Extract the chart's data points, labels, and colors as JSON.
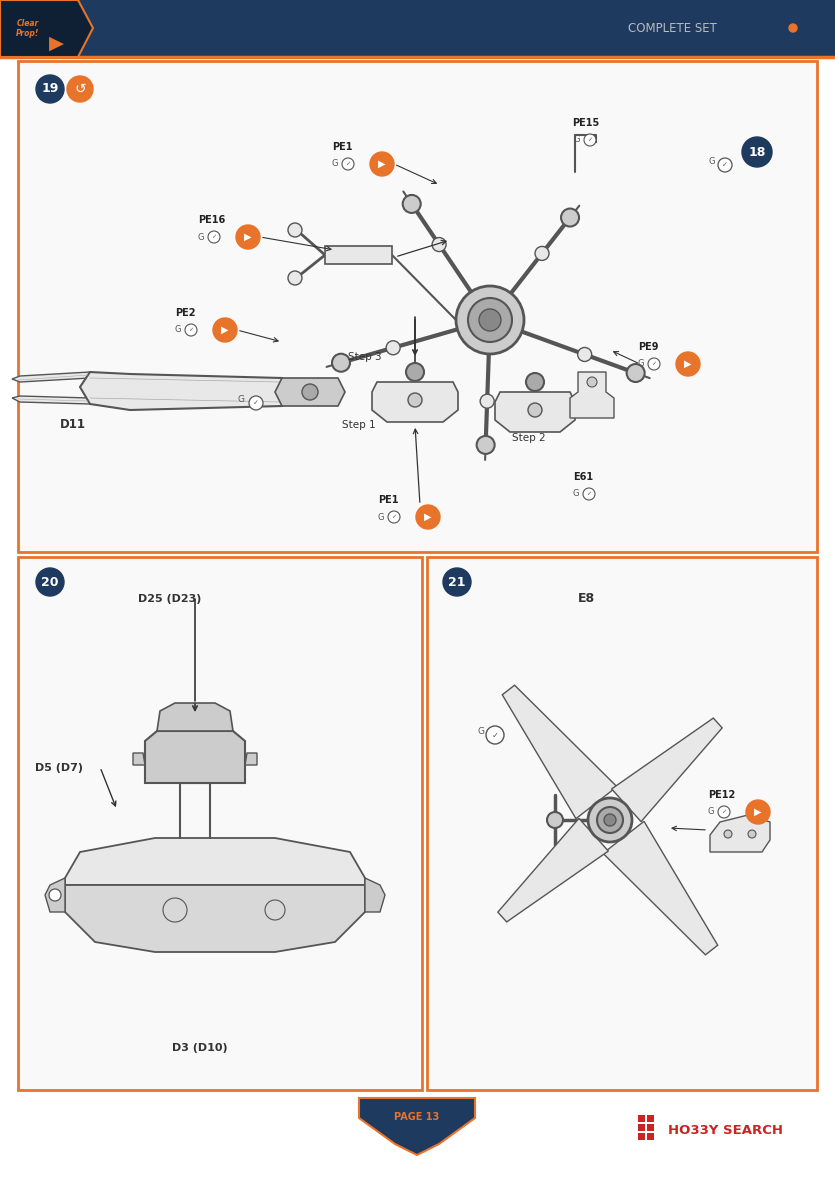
{
  "bg_color": "#ffffff",
  "header_bg": "#1e3a5f",
  "orange": "#e8732a",
  "dark_navy": "#1e3a5f",
  "complete_set": "COMPLETE SET",
  "page_num": "PAGE 13",
  "line_color": "#555555",
  "text_dark": "#222222",
  "fill_light": "#e8e8e8",
  "fill_mid": "#cccccc",
  "fill_dark": "#aaaaaa",
  "step19": "19",
  "step18": "18",
  "step20": "20",
  "step21": "21",
  "d11": "D11",
  "pe16": "PE16",
  "pe1_top": "PE1",
  "pe15": "PE15",
  "pe2": "PE2",
  "pe1_bot": "PE1",
  "pe9": "PE9",
  "e61": "E61",
  "step1": "Step 1",
  "step2": "Step 2",
  "step3": "Step 3",
  "d25": "D25 (D23)",
  "d5": "D5 (D7)",
  "d3": "D3 (D10)",
  "e8": "E8",
  "pe12": "PE12"
}
